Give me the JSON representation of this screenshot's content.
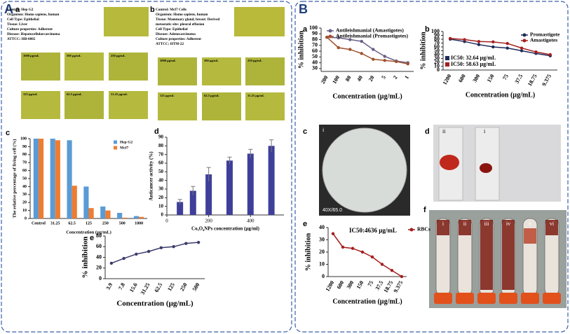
{
  "figure": {
    "A": {
      "letter": "A",
      "a": {
        "letter": "a",
        "info": [
          "Control: Hep G2",
          "Organism: Homo sapiens, human",
          "Cell Type: Epithelial",
          "Tissue: Liver",
          "Culture properties: Adherent",
          "Disease: Hepatocellularcarcinoma",
          "ATTCC: HB-8065"
        ],
        "wells": [
          "1000 µg/mL",
          "500 µg/mL",
          "250 µg/mL",
          "125 µg/mL",
          "62.5 µg/mL",
          "31.25 µg/mL"
        ]
      },
      "b": {
        "letter": "b",
        "info": [
          "Control: Mcf7 Cells",
          "Organism: Homo sapiens, human",
          "Tissue: Mammary gland, breast: Derived",
          "metastatic site: pleural effusion",
          "Cell Type: Epithelial",
          "Disease: Adenocarcinoma",
          "Culture properties: Adherent",
          "ATTCC: HTM-22"
        ],
        "wells": [
          "1000 µg/mL",
          "500 µg/mL",
          "250 µg/mL",
          "125 µg/mL",
          "62.5 µg/mL",
          "31.25 µg/mL"
        ]
      },
      "c": "c",
      "d": "d",
      "e": "e"
    },
    "B": {
      "letter": "B",
      "a": "a",
      "b": "b",
      "c": {
        "letter": "c",
        "labels": [
          "i",
          "40X/65.0"
        ]
      },
      "d": {
        "letter": "d",
        "labels": [
          "ii",
          "i"
        ]
      },
      "e": "e",
      "f": {
        "letter": "f",
        "labels": [
          "i",
          "ii",
          "iii",
          "iv",
          "v",
          "vi"
        ]
      }
    }
  },
  "chart_data": [
    {
      "type": "bar",
      "ylabel": "The relative percentage of living cell (%)",
      "xlabel": "Concentration (µg/mL)",
      "categories": [
        "Control",
        "31.25",
        "62.5",
        "125",
        "250",
        "500",
        "1000"
      ],
      "series": [
        {
          "name": "Hep G2",
          "color": "#5b9bd5",
          "values": [
            100,
            100,
            98,
            40,
            15,
            7,
            3
          ]
        },
        {
          "name": "Mcf7",
          "color": "#ed7d31",
          "values": [
            100,
            98,
            41,
            13,
            10,
            1,
            2
          ]
        }
      ],
      "ylim": [
        0,
        100
      ],
      "yticks": [
        0,
        10,
        20,
        30,
        40,
        50,
        60,
        70,
        80,
        90,
        100
      ],
      "legend": "upper right"
    },
    {
      "type": "bar",
      "ylabel": "Anticancer activity (%)",
      "xlabel": "Co₃O₄NPs concentration (µg/ml)",
      "x": [
        62.5,
        125,
        200,
        300,
        400,
        500
      ],
      "series": [
        {
          "color": "#3f3f9a",
          "values": [
            15,
            28,
            47,
            63,
            71,
            80
          ],
          "errors": [
            3,
            5,
            8,
            4,
            5,
            7
          ]
        }
      ],
      "xlim": [
        0,
        560
      ],
      "xticks": [
        0,
        200,
        400
      ],
      "ylim": [
        0,
        90
      ],
      "yticks": [
        0,
        10,
        20,
        30,
        40,
        50,
        60,
        70,
        80,
        90
      ]
    },
    {
      "type": "line",
      "ylabel": "% inhibition",
      "xlabel": "Concentration (µg/mL)",
      "categories": [
        "3.9",
        "7.8",
        "15.6",
        "31.25",
        "62.5",
        "125",
        "250",
        "500"
      ],
      "series": [
        {
          "color": "#3b3b6b",
          "values": [
            29,
            38,
            46,
            51,
            58,
            60,
            66,
            68
          ]
        }
      ],
      "ylim": [
        0,
        80
      ],
      "yticks": [
        0,
        20,
        40,
        60,
        80
      ]
    },
    {
      "type": "line",
      "ylabel": "% inhibition",
      "xlabel": "Concentration (µg/mL)",
      "categories": [
        "200",
        "100",
        "80",
        "40",
        "20",
        "5",
        "2",
        "1"
      ],
      "series": [
        {
          "name": "Antileishmanial (Amastigotes)",
          "color": "#6a5f86",
          "values": [
            84,
            83,
            80,
            77,
            63,
            51,
            43,
            40
          ]
        },
        {
          "name": "Antileishmanial (Promastigotes)",
          "color": "#a0522d",
          "values": [
            84,
            66,
            63,
            56,
            46,
            44,
            42,
            38
          ]
        }
      ],
      "ylim": [
        25,
        100
      ],
      "yticks": [
        30,
        40,
        50,
        60,
        70,
        80,
        90,
        100
      ],
      "legend": "upper center"
    },
    {
      "type": "line",
      "ylabel": "% inhibition",
      "xlabel": "Concentration (µg/mL)",
      "categories": [
        "1200",
        "600",
        "300",
        "150",
        "75",
        "37.5",
        "18.75",
        "9.375"
      ],
      "series": [
        {
          "name": "Promastigote",
          "color": "#1f2a5a",
          "values": [
            80,
            74,
            66,
            60,
            57,
            50,
            43,
            37
          ]
        },
        {
          "name": "Amastigotes",
          "color": "#a3201e",
          "values": [
            82,
            79,
            74,
            73,
            69,
            57,
            47,
            40
          ]
        }
      ],
      "ylim": [
        0,
        100
      ],
      "yticks": [
        0,
        10,
        20,
        30,
        40,
        50,
        60,
        70,
        80,
        90,
        100
      ],
      "legend": "upper right",
      "annotations": [
        {
          "text": "IC50: 32.64 µg/mL",
          "color": "#1f2a5a"
        },
        {
          "text": "IC50: 58.63 µg/mL",
          "color": "#a3201e"
        }
      ]
    },
    {
      "type": "line",
      "ylabel": "% inhibition",
      "xlabel": "Concentration (µg/mL)",
      "categories": [
        "1200",
        "600",
        "300",
        "150",
        "75",
        "37.5",
        "18.75",
        "9.375"
      ],
      "series": [
        {
          "name": "RBCs",
          "color": "#a3201e",
          "values": [
            35,
            24,
            23,
            20,
            16,
            10,
            5,
            0
          ]
        }
      ],
      "ylim": [
        0,
        40
      ],
      "yticks": [
        0,
        10,
        20,
        30,
        40
      ],
      "legend": "right",
      "annotations": [
        {
          "text": "IC50:4636 µg/mL",
          "color": "#000000"
        }
      ]
    }
  ]
}
